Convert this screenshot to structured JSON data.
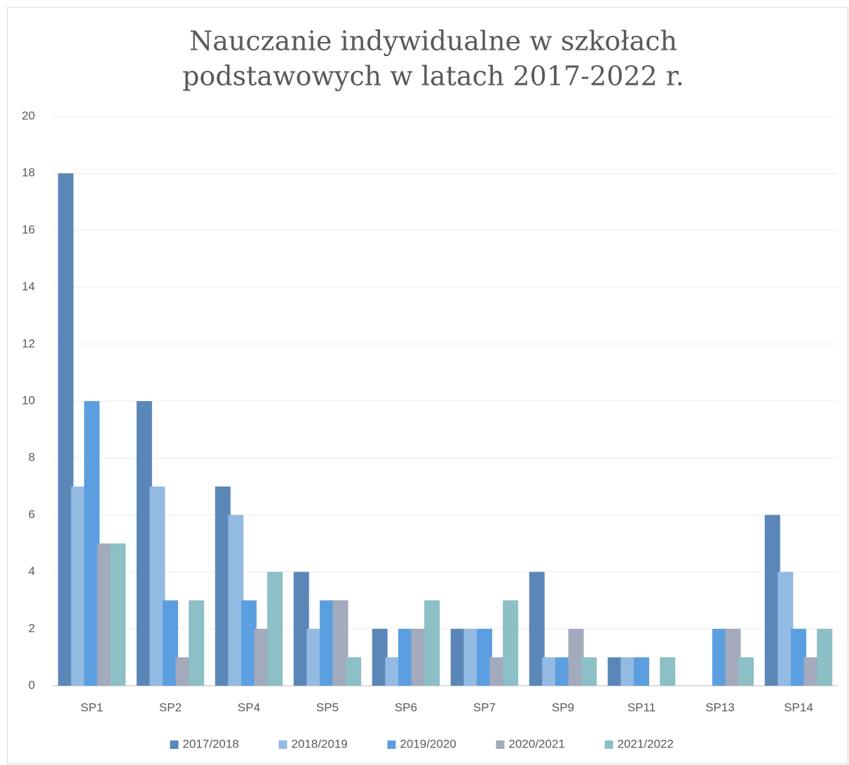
{
  "chart_data": {
    "type": "bar",
    "title": [
      "Nauczanie indywidualne w szkołach",
      "podstawowych w latach 2017-2022 r."
    ],
    "categories": [
      "SP1",
      "SP2",
      "SP4",
      "SP5",
      "SP6",
      "SP7",
      "SP9",
      "SP11",
      "SP13",
      "SP14"
    ],
    "series": [
      {
        "name": "2017/2018",
        "color": "#5b87b8",
        "values": [
          18,
          10,
          7,
          4,
          2,
          2,
          4,
          1,
          0,
          6
        ]
      },
      {
        "name": "2018/2019",
        "color": "#93bae2",
        "values": [
          7,
          7,
          6,
          2,
          1,
          2,
          1,
          1,
          0,
          4
        ]
      },
      {
        "name": "2019/2020",
        "color": "#5b9fe0",
        "values": [
          10,
          3,
          3,
          3,
          2,
          2,
          1,
          1,
          2,
          2
        ]
      },
      {
        "name": "2020/2021",
        "color": "#a3aabb",
        "values": [
          5,
          1,
          2,
          3,
          2,
          1,
          2,
          0,
          2,
          1
        ]
      },
      {
        "name": "2021/2022",
        "color": "#8cbfc6",
        "values": [
          5,
          3,
          4,
          1,
          3,
          3,
          1,
          1,
          1,
          2
        ]
      }
    ],
    "ylim": [
      0,
      20
    ],
    "yticks": [
      0,
      2,
      4,
      6,
      8,
      10,
      12,
      14,
      16,
      18,
      20
    ],
    "grid": true,
    "legend": "bottom"
  }
}
